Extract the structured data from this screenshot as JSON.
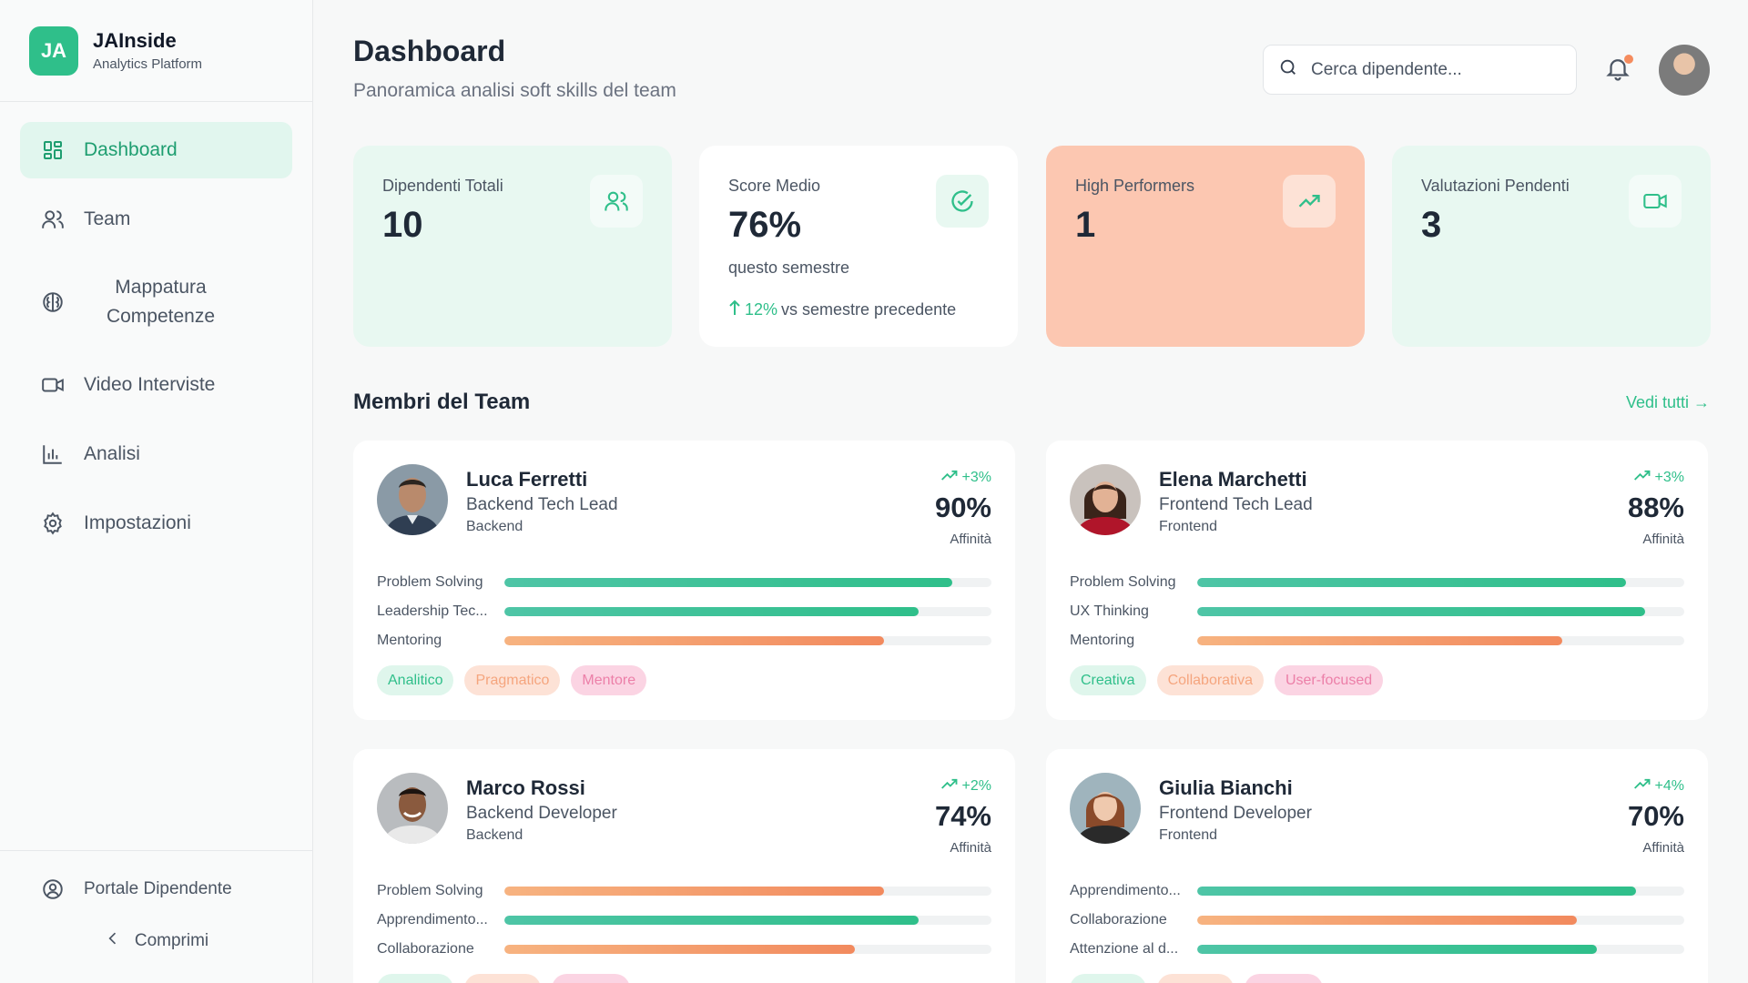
{
  "brand": {
    "initials": "JA",
    "name": "JAInside",
    "subtitle": "Analytics Platform"
  },
  "nav": [
    {
      "label": "Dashboard",
      "icon": "grid-icon",
      "active": true
    },
    {
      "label": "Team",
      "icon": "users-icon"
    },
    {
      "label": "Mappatura Competenze",
      "icon": "brain-icon"
    },
    {
      "label": "Video Interviste",
      "icon": "video-icon"
    },
    {
      "label": "Analisi",
      "icon": "bar-chart-icon"
    },
    {
      "label": "Impostazioni",
      "icon": "gear-icon"
    }
  ],
  "footer": {
    "portal_label": "Portale Dipendente",
    "collapse_label": "Comprimi"
  },
  "header": {
    "title": "Dashboard",
    "subtitle": "Panoramica analisi soft skills del team",
    "search_placeholder": "Cerca dipendente..."
  },
  "stats": [
    {
      "label": "Dipendenti Totali",
      "value": "10",
      "icon": "users-icon"
    },
    {
      "label": "Score Medio",
      "value": "76%",
      "note": "questo semestre",
      "trend": "12%",
      "trend_suffix": "vs semestre precedente",
      "icon": "check-circle-icon"
    },
    {
      "label": "High Performers",
      "value": "1",
      "icon": "trend-up-icon"
    },
    {
      "label": "Valutazioni Pendenti",
      "value": "3",
      "icon": "video-icon"
    }
  ],
  "team": {
    "title": "Membri del Team",
    "see_all": "Vedi tutti →",
    "score_label": "Affinità",
    "members": [
      {
        "name": "Luca Ferretti",
        "role": "Backend Tech Lead",
        "dept": "Backend",
        "delta": "+3%",
        "score": "90%",
        "skills": [
          {
            "name": "Problem Solving",
            "value": 0.92,
            "color": "teal"
          },
          {
            "name": "Leadership Tec...",
            "value": 0.85,
            "color": "teal"
          },
          {
            "name": "Mentoring",
            "value": 0.78,
            "color": "orange"
          }
        ],
        "tags": [
          {
            "label": "Analitico",
            "color": "green"
          },
          {
            "label": "Pragmatico",
            "color": "orange"
          },
          {
            "label": "Mentore",
            "color": "pink"
          }
        ]
      },
      {
        "name": "Elena Marchetti",
        "role": "Frontend Tech Lead",
        "dept": "Frontend",
        "delta": "+3%",
        "score": "88%",
        "skills": [
          {
            "name": "Problem Solving",
            "value": 0.88,
            "color": "teal"
          },
          {
            "name": "UX Thinking",
            "value": 0.92,
            "color": "teal"
          },
          {
            "name": "Mentoring",
            "value": 0.75,
            "color": "orange"
          }
        ],
        "tags": [
          {
            "label": "Creativa",
            "color": "green"
          },
          {
            "label": "Collaborativa",
            "color": "orange"
          },
          {
            "label": "User-focused",
            "color": "pink"
          }
        ]
      },
      {
        "name": "Marco Rossi",
        "role": "Backend Developer",
        "dept": "Backend",
        "delta": "+2%",
        "score": "74%",
        "skills": [
          {
            "name": "Problem Solving",
            "value": 0.78,
            "color": "orange"
          },
          {
            "name": "Apprendimento...",
            "value": 0.85,
            "color": "teal"
          },
          {
            "name": "Collaborazione",
            "value": 0.72,
            "color": "orange"
          }
        ],
        "tags": [
          {
            "label": "",
            "color": "green"
          },
          {
            "label": "",
            "color": "orange"
          },
          {
            "label": "",
            "color": "pink"
          }
        ]
      },
      {
        "name": "Giulia Bianchi",
        "role": "Frontend Developer",
        "dept": "Frontend",
        "delta": "+4%",
        "score": "70%",
        "skills": [
          {
            "name": "Apprendimento...",
            "value": 0.9,
            "color": "teal"
          },
          {
            "name": "Collaborazione",
            "value": 0.78,
            "color": "orange"
          },
          {
            "name": "Attenzione al d...",
            "value": 0.82,
            "color": "teal"
          }
        ],
        "tags": [
          {
            "label": "",
            "color": "green"
          },
          {
            "label": "",
            "color": "orange"
          },
          {
            "label": "",
            "color": "pink"
          }
        ]
      }
    ]
  }
}
